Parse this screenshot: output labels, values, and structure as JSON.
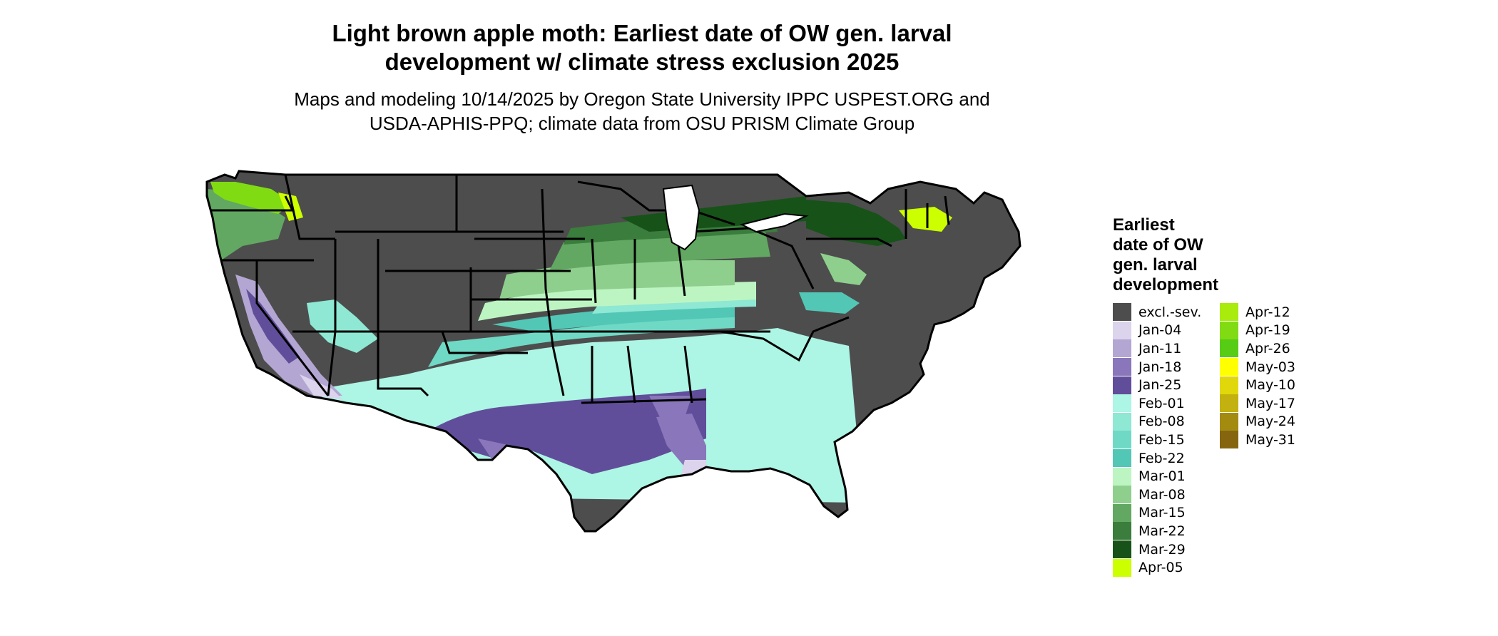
{
  "title_line1": "Light brown apple moth: Earliest date of OW gen. larval",
  "title_line2": "development w/ climate stress exclusion 2025",
  "subtitle_line1": "Maps and modeling 10/14/2025 by Oregon State University IPPC USPEST.ORG and",
  "subtitle_line2": "USDA-APHIS-PPQ; climate data from OSU PRISM Climate Group",
  "legend": {
    "title_lines": [
      "Earliest",
      "date of OW",
      "gen. larval",
      "development"
    ],
    "items": [
      {
        "label": "excl.-sev.",
        "color": "#4d4d4d"
      },
      {
        "label": "Jan-04",
        "color": "#dcd3ec"
      },
      {
        "label": "Jan-11",
        "color": "#b3a6d3"
      },
      {
        "label": "Jan-18",
        "color": "#8a76ba"
      },
      {
        "label": "Jan-25",
        "color": "#614e9a"
      },
      {
        "label": "Feb-01",
        "color": "#adf5e4"
      },
      {
        "label": "Feb-08",
        "color": "#8ee8d4"
      },
      {
        "label": "Feb-15",
        "color": "#6fd9c5"
      },
      {
        "label": "Feb-22",
        "color": "#52c7b6"
      },
      {
        "label": "Mar-01",
        "color": "#bdf5c2"
      },
      {
        "label": "Mar-08",
        "color": "#8fcf8e"
      },
      {
        "label": "Mar-15",
        "color": "#62a862"
      },
      {
        "label": "Mar-22",
        "color": "#3a7d3c"
      },
      {
        "label": "Mar-29",
        "color": "#175219"
      },
      {
        "label": "Apr-05",
        "color": "#ccff00"
      },
      {
        "label": "Apr-12",
        "color": "#a8eb0c"
      },
      {
        "label": "Apr-19",
        "color": "#80db12"
      },
      {
        "label": "Apr-26",
        "color": "#56cc14"
      },
      {
        "label": "May-03",
        "color": "#ffff00"
      },
      {
        "label": "May-10",
        "color": "#e0d80a"
      },
      {
        "label": "May-17",
        "color": "#c2b10e"
      },
      {
        "label": "May-24",
        "color": "#a38b10"
      },
      {
        "label": "May-31",
        "color": "#85660f"
      }
    ]
  }
}
